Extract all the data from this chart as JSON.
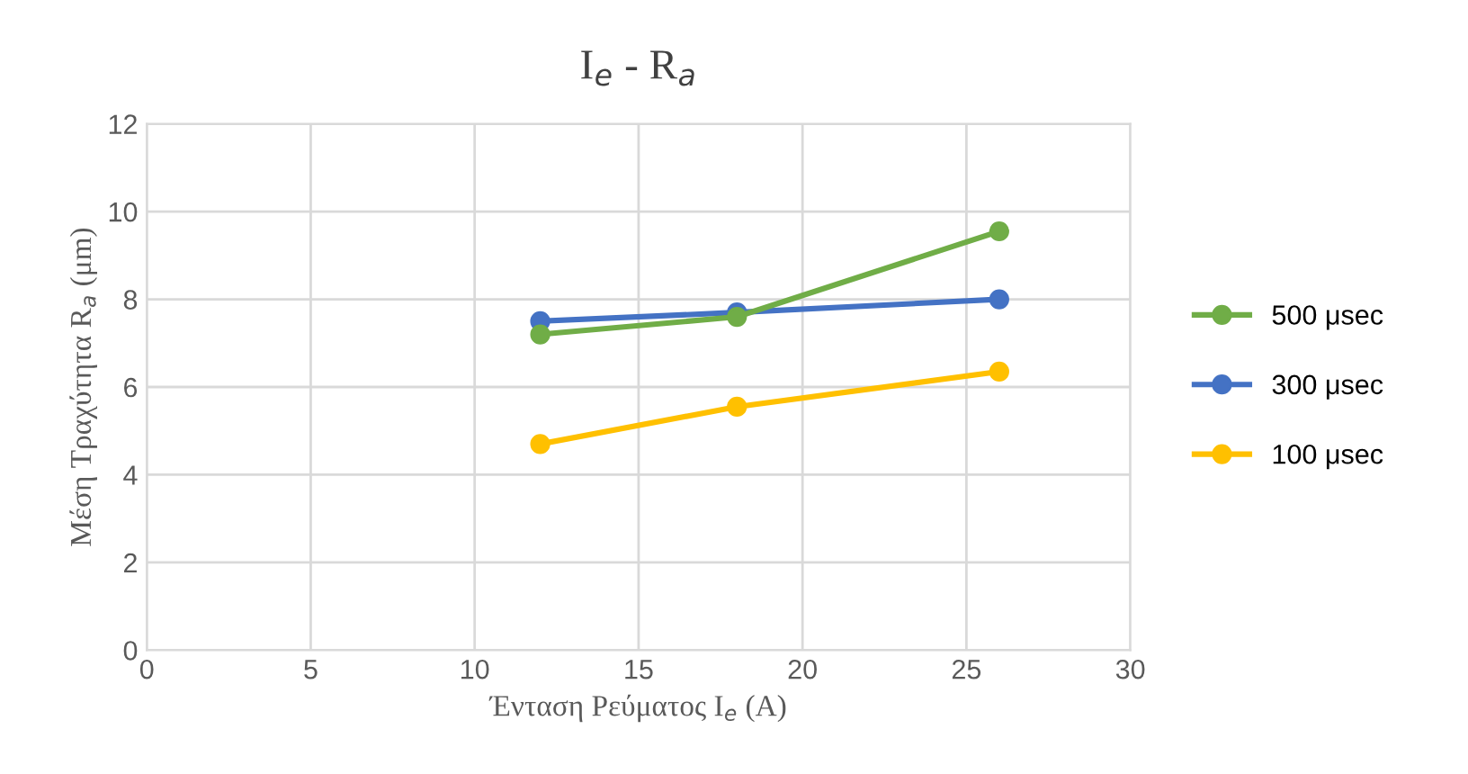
{
  "chart_data": {
    "type": "line",
    "title": "I$_{e}$ - R$_{a}$",
    "xlabel": "Ένταση Ρεύματος I$_{e}$ (A)",
    "ylabel": "Μέση Τραχύτητα R$_{a}$ (μm)",
    "x": [
      12,
      18,
      26
    ],
    "series": [
      {
        "name": "500 μsec",
        "color": "#70ad47",
        "values": [
          7.2,
          7.6,
          9.55
        ]
      },
      {
        "name": "300 μsec",
        "color": "#4472c4",
        "values": [
          7.5,
          7.7,
          8.0
        ]
      },
      {
        "name": "100 μsec",
        "color": "#ffc000",
        "values": [
          4.7,
          5.55,
          6.35
        ]
      }
    ],
    "xlim": [
      0,
      30
    ],
    "xticks": [
      0,
      5,
      10,
      15,
      20,
      25,
      30
    ],
    "ylim": [
      0,
      12
    ],
    "yticks": [
      0,
      2,
      4,
      6,
      8,
      10,
      12
    ],
    "grid": true,
    "legend": "right",
    "marker": "circle",
    "line_style": "solid"
  }
}
